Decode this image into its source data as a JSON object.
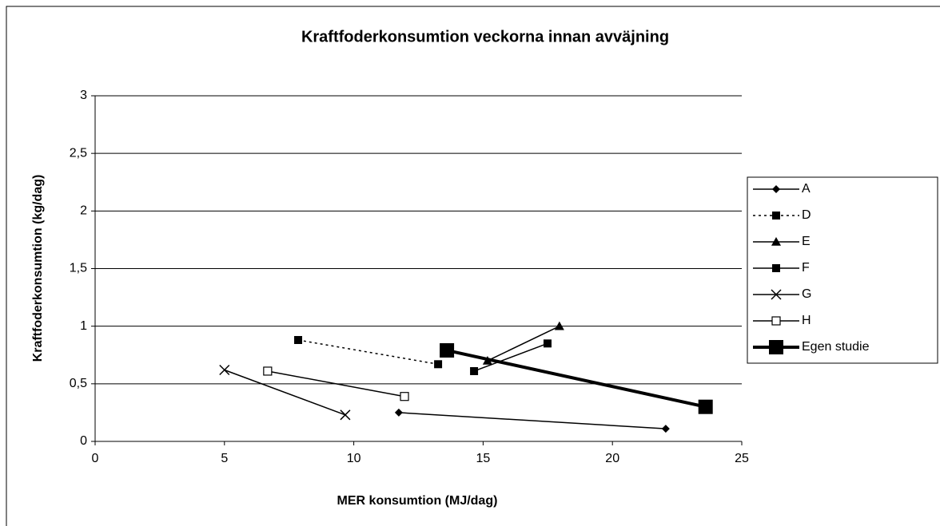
{
  "chart_data": {
    "type": "line",
    "title": "Kraftfoderkonsumtion veckorna innan avväjning",
    "x_label": "MER konsumtion (MJ/dag)",
    "y_label": "Kraftfoderkonsumtion (kg/dag)",
    "xlim": [
      0,
      25
    ],
    "xticks": [
      0,
      5,
      10,
      15,
      20,
      25
    ],
    "ylim": [
      0,
      3
    ],
    "yticks": [
      0,
      {
        "value": 0.5,
        "label": "0,5"
      },
      1,
      {
        "value": 1.5,
        "label": "1,5"
      },
      2,
      {
        "value": 2.5,
        "label": "2,5"
      },
      3
    ],
    "grid": true,
    "legend": "right",
    "series": [
      {
        "name": "A",
        "color": "#000000",
        "marker": "diamond",
        "marker_size": 5,
        "dash": "solid",
        "line_width": 1.5,
        "x": [
          11.74,
          22.06
        ],
        "values": [
          0.25,
          0.11
        ]
      },
      {
        "name": "D",
        "color": "#000000",
        "marker": "square",
        "marker_size": 5,
        "dash": "dotted",
        "line_width": 1.5,
        "x": [
          7.85,
          13.26
        ],
        "values": [
          0.88,
          0.67
        ]
      },
      {
        "name": "E",
        "color": "#000000",
        "marker": "triangle",
        "marker_size": 6,
        "dash": "solid",
        "line_width": 1.5,
        "x": [
          15.17,
          17.95
        ],
        "values": [
          0.7,
          1.0
        ]
      },
      {
        "name": "F",
        "color": "#000000",
        "marker": "square",
        "marker_size": 5,
        "dash": "solid",
        "line_width": 1.5,
        "x": [
          14.65,
          17.49
        ],
        "values": [
          0.61,
          0.85
        ]
      },
      {
        "name": "G",
        "color": "#000000",
        "marker": "x",
        "marker_size": 6,
        "dash": "solid",
        "line_width": 1.5,
        "x": [
          5.0,
          9.67
        ],
        "values": [
          0.62,
          0.23
        ]
      },
      {
        "name": "H",
        "color": "#000000",
        "marker": "open-square",
        "marker_size": 5,
        "dash": "solid",
        "line_width": 1.5,
        "x": [
          6.67,
          11.96
        ],
        "values": [
          0.61,
          0.39
        ]
      },
      {
        "name": "Egen studie",
        "color": "#000000",
        "marker": "square",
        "marker_size": 9,
        "dash": "solid",
        "line_width": 4,
        "x": [
          13.6,
          23.6
        ],
        "values": [
          0.79,
          0.3
        ]
      }
    ]
  }
}
